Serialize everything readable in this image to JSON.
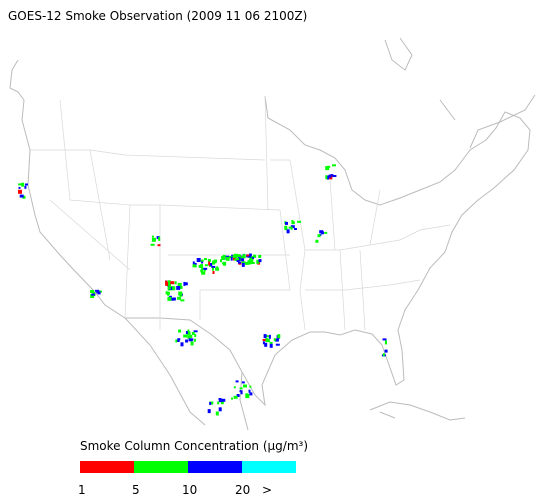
{
  "title": "GOES-12 Smoke Observation (2009 11 06  2100Z)",
  "legend": {
    "label": "Smoke Column Concentration (μg/m³)",
    "colors": [
      "#ff0000",
      "#00ff00",
      "#0000ff",
      "#00ffff"
    ],
    "ticks": [
      "1",
      "5",
      "10",
      "20",
      ">"
    ]
  }
}
